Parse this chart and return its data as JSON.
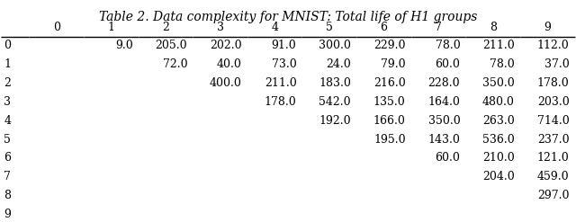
{
  "title": "Table 2. Data complexity for MNIST: Total life of H1 groups",
  "columns": [
    "",
    "0",
    "1",
    "2",
    "3",
    "4",
    "5",
    "6",
    "7",
    "8",
    "9"
  ],
  "rows": [
    [
      "0",
      "",
      "9.0",
      "205.0",
      "202.0",
      "91.0",
      "300.0",
      "229.0",
      "78.0",
      "211.0",
      "112.0"
    ],
    [
      "1",
      "",
      "",
      "72.0",
      "40.0",
      "73.0",
      "24.0",
      "79.0",
      "60.0",
      "78.0",
      "37.0"
    ],
    [
      "2",
      "",
      "",
      "",
      "400.0",
      "211.0",
      "183.0",
      "216.0",
      "228.0",
      "350.0",
      "178.0"
    ],
    [
      "3",
      "",
      "",
      "",
      "",
      "178.0",
      "542.0",
      "135.0",
      "164.0",
      "480.0",
      "203.0"
    ],
    [
      "4",
      "",
      "",
      "",
      "",
      "",
      "192.0",
      "166.0",
      "350.0",
      "263.0",
      "714.0"
    ],
    [
      "5",
      "",
      "",
      "",
      "",
      "",
      "",
      "195.0",
      "143.0",
      "536.0",
      "237.0"
    ],
    [
      "6",
      "",
      "",
      "",
      "",
      "",
      "",
      "",
      "60.0",
      "210.0",
      "121.0"
    ],
    [
      "7",
      "",
      "",
      "",
      "",
      "",
      "",
      "",
      "",
      "204.0",
      "459.0"
    ],
    [
      "8",
      "",
      "",
      "",
      "",
      "",
      "",
      "",
      "",
      "",
      "297.0"
    ],
    [
      "9",
      "",
      "",
      "",
      "",
      "",
      "",
      "",
      "",
      "",
      ""
    ]
  ],
  "bg_color": "#ffffff",
  "text_color": "#000000",
  "title_fontsize": 10,
  "cell_fontsize": 9,
  "figsize": [
    6.4,
    2.47
  ],
  "dpi": 100
}
